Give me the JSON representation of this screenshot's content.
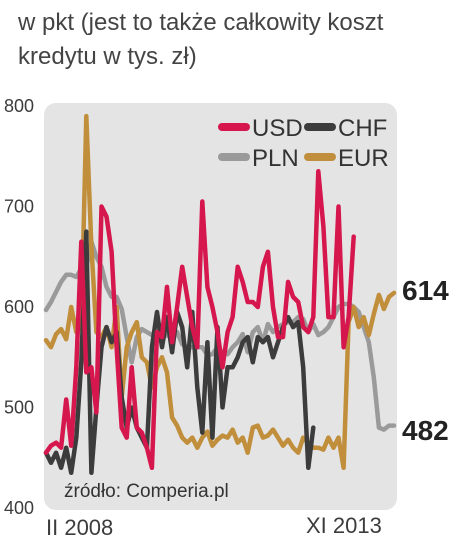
{
  "header": {
    "subtitle": "w pkt (jest to także całkowity koszt kredytu w tys. zł)"
  },
  "source": "źródło: Comperia.pl",
  "x_start_label": "II 2008",
  "x_end_label": "XI 2013",
  "chart_data": {
    "type": "line",
    "title": "",
    "subtitle": "w pkt (jest to także całkowity koszt kredytu w tys. zł)",
    "xlabel": "",
    "ylabel": "",
    "ylim": [
      400,
      800
    ],
    "yticks": [
      400,
      500,
      600,
      700,
      800
    ],
    "x_range": [
      "II 2008",
      "XI 2013"
    ],
    "n_points": 70,
    "grid": false,
    "legend": "top-right",
    "end_labels": [
      {
        "series": "EUR",
        "value": "614"
      },
      {
        "series": "PLN",
        "value": "482"
      }
    ],
    "series": [
      {
        "name": "USD",
        "color": "#d6174e",
        "values": [
          455,
          462,
          465,
          460,
          508,
          462,
          540,
          665,
          535,
          540,
          495,
          700,
          690,
          655,
          560,
          480,
          470,
          540,
          480,
          475,
          460,
          440,
          575,
          570,
          620,
          565,
          600,
          640,
          610,
          580,
          560,
          705,
          620,
          600,
          575,
          540,
          575,
          590,
          640,
          625,
          605,
          605,
          600,
          640,
          655,
          600,
          570,
          570,
          625,
          610,
          605,
          580,
          575,
          590,
          735,
          680,
          590,
          590,
          700,
          560,
          590,
          670,
          null,
          null,
          null,
          null,
          null,
          null,
          null,
          null
        ]
      },
      {
        "name": "CHF",
        "color": "#3c3c3c",
        "values": [
          455,
          445,
          455,
          440,
          460,
          435,
          470,
          545,
          675,
          435,
          500,
          560,
          580,
          565,
          575,
          510,
          480,
          500,
          480,
          470,
          460,
          560,
          595,
          560,
          590,
          555,
          595,
          580,
          540,
          595,
          520,
          475,
          565,
          470,
          580,
          500,
          540,
          540,
          550,
          565,
          570,
          545,
          570,
          565,
          570,
          550,
          565,
          580,
          590,
          580,
          585,
          540,
          440,
          480,
          null,
          null,
          null,
          null,
          null,
          null,
          null,
          null,
          null,
          null,
          null,
          null,
          null,
          null,
          null,
          null
        ]
      },
      {
        "name": "PLN",
        "color": "#9a9a9a",
        "values": [
          597,
          605,
          615,
          625,
          632,
          632,
          630,
          638,
          640,
          665,
          650,
          640,
          620,
          610,
          610,
          598,
          570,
          545,
          570,
          578,
          575,
          572,
          573,
          570,
          572,
          570,
          575,
          563,
          560,
          560,
          560,
          560,
          552,
          553,
          560,
          555,
          553,
          560,
          565,
          573,
          555,
          575,
          580,
          565,
          583,
          575,
          580,
          583,
          585,
          585,
          590,
          588,
          575,
          583,
          572,
          575,
          580,
          590,
          600,
          603,
          603,
          600,
          595,
          580,
          565,
          530,
          480,
          478,
          482,
          482
        ]
      },
      {
        "name": "EUR",
        "color": "#c18f3b",
        "values": [
          567,
          560,
          573,
          578,
          568,
          600,
          575,
          580,
          790,
          660,
          575,
          570,
          580,
          560,
          600,
          510,
          560,
          575,
          585,
          550,
          545,
          520,
          540,
          550,
          535,
          490,
          482,
          470,
          465,
          470,
          460,
          470,
          476,
          462,
          468,
          472,
          470,
          478,
          465,
          470,
          455,
          480,
          482,
          470,
          472,
          478,
          470,
          462,
          468,
          460,
          455,
          470,
          465,
          460,
          460,
          458,
          470,
          460,
          470,
          440,
          585,
          600,
          580,
          590,
          572,
          593,
          612,
          598,
          610,
          614
        ]
      }
    ]
  }
}
